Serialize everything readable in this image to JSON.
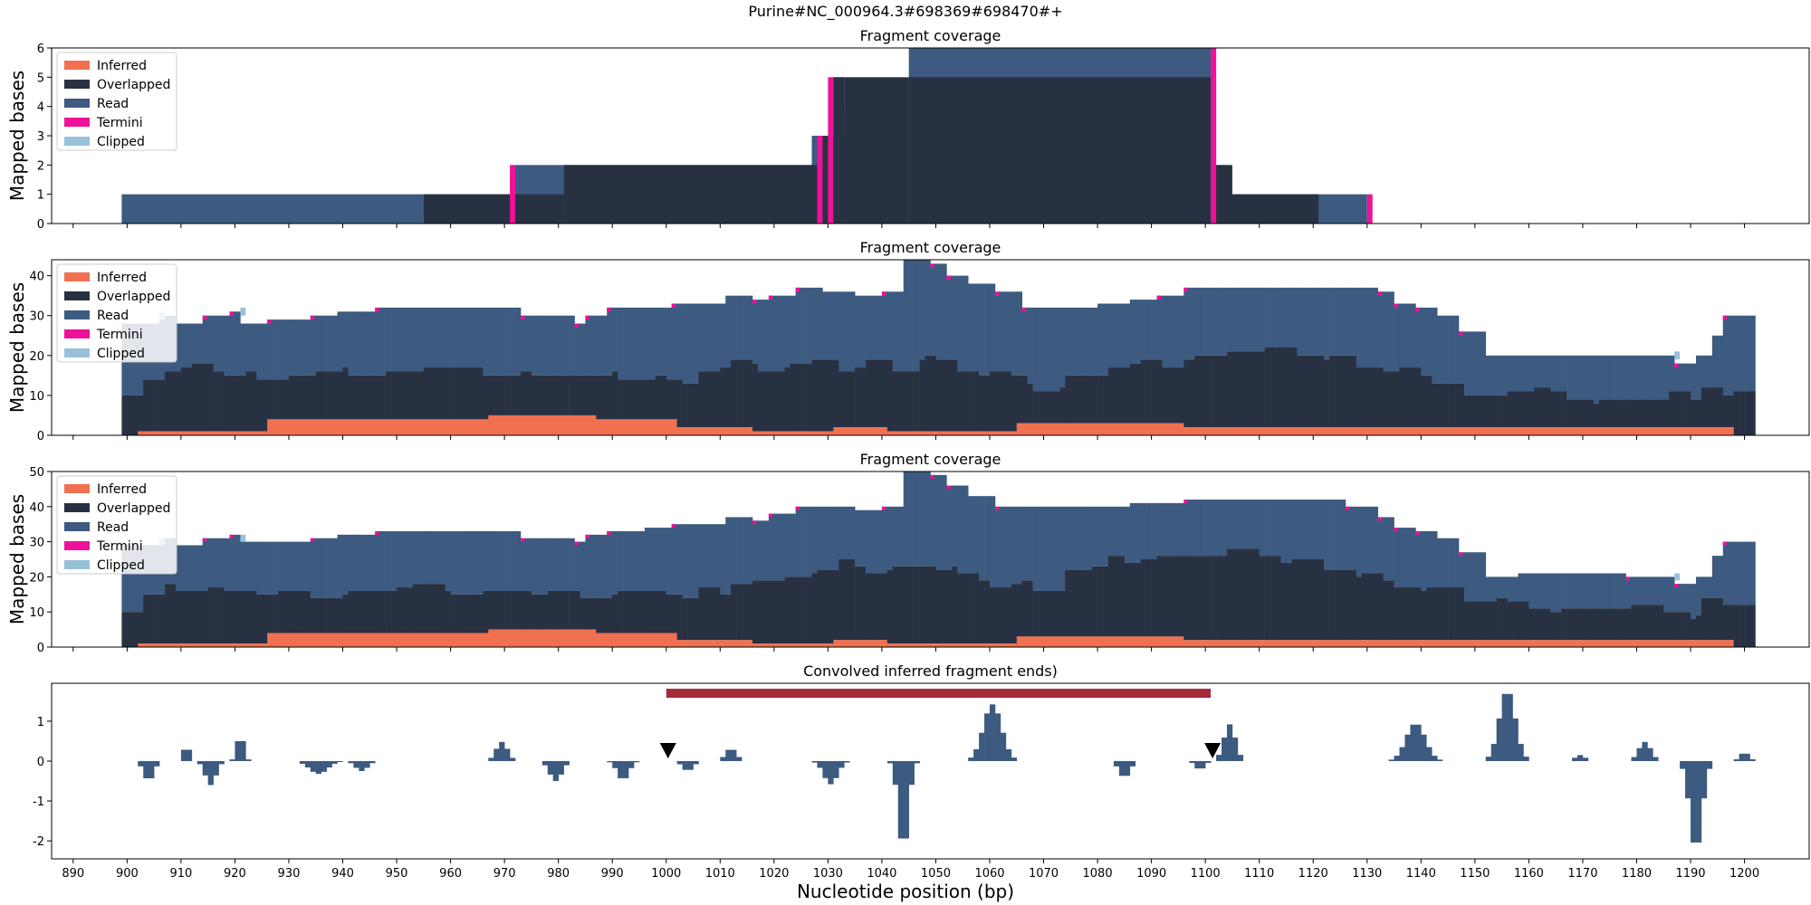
{
  "figure": {
    "suptitle": "Purine#NC_000964.3#698369#698470#+",
    "xlabel": "Nucleotide position (bp)"
  },
  "colors": {
    "Inferred": "#f07050",
    "Overlapped": "#283142",
    "Read": "#3d5a80",
    "Termini": "#ee1199",
    "Clipped": "#98c1d9",
    "band": "#a52a3a",
    "neg_bars": "#3d5a80"
  },
  "legend_entries": [
    "Inferred",
    "Overlapped",
    "Read",
    "Termini",
    "Clipped"
  ],
  "chart_data": [
    {
      "type": "area",
      "title": "Fragment coverage",
      "ylabel": "Mapped bases",
      "xlim": [
        886,
        1212
      ],
      "ylim": [
        0,
        6
      ],
      "yticks": [
        0,
        1,
        2,
        3,
        4,
        5,
        6
      ],
      "legend": "top-left",
      "series": [
        {
          "name": "Read",
          "steps": [
            [
              899,
              955,
              1
            ],
            [
              955,
              972,
              1
            ],
            [
              972,
              981,
              2
            ],
            [
              981,
              1027,
              2
            ],
            [
              1027,
              1031,
              3
            ],
            [
              1031,
              1033,
              5
            ],
            [
              1033,
              1045,
              4
            ],
            [
              1045,
              1045,
              5
            ],
            [
              1045,
              1102,
              6
            ],
            [
              1102,
              1104,
              2
            ],
            [
              1104,
              1130,
              1
            ]
          ]
        },
        {
          "name": "Overlapped",
          "steps": [
            [
              955,
              972,
              1
            ],
            [
              972,
              981,
              1
            ],
            [
              981,
              1029,
              2
            ],
            [
              1029,
              1033,
              3
            ],
            [
              1031,
              1033,
              5
            ],
            [
              1033,
              1045,
              5
            ],
            [
              1045,
              1102,
              5
            ],
            [
              1102,
              1105,
              2
            ],
            [
              1105,
              1121,
              1
            ]
          ]
        },
        {
          "name": "Termini",
          "marks": [
            [
              971,
              2
            ],
            [
              1028,
              3
            ],
            [
              1030,
              5
            ],
            [
              1101,
              6
            ],
            [
              1130,
              1
            ]
          ]
        }
      ]
    },
    {
      "type": "area",
      "title": "Fragment coverage",
      "ylabel": "Mapped bases",
      "xlim": [
        886,
        1212
      ],
      "ylim": [
        0,
        44
      ],
      "yticks": [
        0,
        10,
        20,
        30,
        40
      ],
      "legend": "top-left",
      "total_profile": [
        [
          899,
          28
        ],
        [
          906,
          30
        ],
        [
          909,
          28
        ],
        [
          914,
          30
        ],
        [
          919,
          31
        ],
        [
          921,
          28
        ],
        [
          926,
          29
        ],
        [
          934,
          30
        ],
        [
          939,
          31
        ],
        [
          946,
          32
        ],
        [
          956,
          32
        ],
        [
          966,
          32
        ],
        [
          973,
          30
        ],
        [
          979,
          30
        ],
        [
          983,
          28
        ],
        [
          985,
          30
        ],
        [
          989,
          32
        ],
        [
          996,
          32
        ],
        [
          1001,
          33
        ],
        [
          1006,
          33
        ],
        [
          1011,
          35
        ],
        [
          1016,
          34
        ],
        [
          1019,
          35
        ],
        [
          1024,
          37
        ],
        [
          1029,
          36
        ],
        [
          1035,
          35
        ],
        [
          1040,
          36
        ],
        [
          1044,
          44
        ],
        [
          1049,
          43
        ],
        [
          1052,
          40
        ],
        [
          1056,
          38
        ],
        [
          1061,
          36
        ],
        [
          1066,
          32
        ],
        [
          1071,
          32
        ],
        [
          1080,
          33
        ],
        [
          1086,
          34
        ],
        [
          1091,
          35
        ],
        [
          1096,
          37
        ],
        [
          1106,
          37
        ],
        [
          1116,
          37
        ],
        [
          1126,
          37
        ],
        [
          1132,
          36
        ],
        [
          1135,
          33
        ],
        [
          1139,
          32
        ],
        [
          1143,
          30
        ],
        [
          1147,
          26
        ],
        [
          1152,
          20
        ],
        [
          1158,
          20
        ],
        [
          1163,
          20
        ],
        [
          1168,
          20
        ],
        [
          1178,
          20
        ],
        [
          1187,
          18
        ],
        [
          1191,
          20
        ],
        [
          1194,
          25
        ],
        [
          1196,
          30
        ],
        [
          1202,
          30
        ]
      ],
      "overlapped_profile": [
        [
          899,
          10
        ],
        [
          903,
          14
        ],
        [
          907,
          16
        ],
        [
          912,
          17
        ],
        [
          918,
          16
        ],
        [
          924,
          14
        ],
        [
          930,
          15
        ],
        [
          940,
          16
        ],
        [
          950,
          16
        ],
        [
          955,
          17
        ],
        [
          960,
          16
        ],
        [
          970,
          16
        ],
        [
          975,
          15
        ],
        [
          985,
          14
        ],
        [
          990,
          15
        ],
        [
          1000,
          14
        ],
        [
          1003,
          13
        ],
        [
          1006,
          16
        ],
        [
          1012,
          18
        ],
        [
          1016,
          17
        ],
        [
          1022,
          18
        ],
        [
          1027,
          19
        ],
        [
          1032,
          16
        ],
        [
          1037,
          18
        ],
        [
          1042,
          17
        ],
        [
          1047,
          20
        ],
        [
          1050,
          19
        ],
        [
          1054,
          16
        ],
        [
          1058,
          15
        ],
        [
          1064,
          14
        ],
        [
          1068,
          12
        ],
        [
          1074,
          15
        ],
        [
          1082,
          17
        ],
        [
          1088,
          18
        ],
        [
          1096,
          20
        ],
        [
          1104,
          21
        ],
        [
          1114,
          21
        ],
        [
          1122,
          20
        ],
        [
          1128,
          17
        ],
        [
          1133,
          16
        ],
        [
          1140,
          14
        ],
        [
          1148,
          10
        ],
        [
          1156,
          11
        ],
        [
          1164,
          10
        ],
        [
          1172,
          9
        ],
        [
          1180,
          9
        ],
        [
          1186,
          10
        ],
        [
          1190,
          8
        ],
        [
          1192,
          13
        ],
        [
          1196,
          11
        ],
        [
          1202,
          10
        ]
      ],
      "inferred_steps": [
        [
          902,
          926,
          1
        ],
        [
          926,
          967,
          4
        ],
        [
          967,
          987,
          5
        ],
        [
          987,
          1002,
          4
        ],
        [
          1002,
          1006,
          2
        ],
        [
          1006,
          1016,
          2
        ],
        [
          1016,
          1023,
          1
        ],
        [
          1023,
          1031,
          1
        ],
        [
          1031,
          1041,
          2
        ],
        [
          1041,
          1065,
          1
        ],
        [
          1065,
          1096,
          3
        ],
        [
          1096,
          1198,
          2
        ]
      ]
    },
    {
      "type": "area",
      "title": "Fragment coverage",
      "ylabel": "Mapped bases",
      "xlim": [
        886,
        1212
      ],
      "ylim": [
        0,
        50
      ],
      "yticks": [
        0,
        10,
        20,
        30,
        40,
        50
      ],
      "legend": "top-left",
      "total_profile": [
        [
          899,
          29
        ],
        [
          906,
          31
        ],
        [
          909,
          29
        ],
        [
          914,
          31
        ],
        [
          919,
          32
        ],
        [
          921,
          30
        ],
        [
          926,
          30
        ],
        [
          934,
          31
        ],
        [
          939,
          32
        ],
        [
          946,
          33
        ],
        [
          956,
          33
        ],
        [
          966,
          33
        ],
        [
          973,
          31
        ],
        [
          979,
          31
        ],
        [
          983,
          30
        ],
        [
          985,
          32
        ],
        [
          989,
          33
        ],
        [
          996,
          34
        ],
        [
          1001,
          35
        ],
        [
          1006,
          35
        ],
        [
          1011,
          37
        ],
        [
          1016,
          36
        ],
        [
          1019,
          38
        ],
        [
          1024,
          40
        ],
        [
          1029,
          40
        ],
        [
          1035,
          39
        ],
        [
          1040,
          40
        ],
        [
          1044,
          50
        ],
        [
          1049,
          49
        ],
        [
          1052,
          46
        ],
        [
          1056,
          43
        ],
        [
          1061,
          40
        ],
        [
          1066,
          40
        ],
        [
          1071,
          40
        ],
        [
          1080,
          40
        ],
        [
          1086,
          41
        ],
        [
          1091,
          41
        ],
        [
          1096,
          42
        ],
        [
          1106,
          42
        ],
        [
          1116,
          42
        ],
        [
          1126,
          40
        ],
        [
          1132,
          37
        ],
        [
          1135,
          34
        ],
        [
          1139,
          33
        ],
        [
          1143,
          31
        ],
        [
          1147,
          27
        ],
        [
          1152,
          20
        ],
        [
          1158,
          21
        ],
        [
          1163,
          21
        ],
        [
          1168,
          21
        ],
        [
          1178,
          20
        ],
        [
          1187,
          18
        ],
        [
          1191,
          20
        ],
        [
          1194,
          26
        ],
        [
          1196,
          30
        ],
        [
          1202,
          30
        ]
      ],
      "overlapped_profile": [
        [
          899,
          10
        ],
        [
          903,
          14
        ],
        [
          907,
          17
        ],
        [
          912,
          17
        ],
        [
          918,
          16
        ],
        [
          924,
          15
        ],
        [
          930,
          15
        ],
        [
          940,
          16
        ],
        [
          950,
          17
        ],
        [
          955,
          17
        ],
        [
          960,
          16
        ],
        [
          970,
          16
        ],
        [
          975,
          15
        ],
        [
          985,
          15
        ],
        [
          990,
          16
        ],
        [
          1000,
          15
        ],
        [
          1003,
          13
        ],
        [
          1006,
          16
        ],
        [
          1012,
          19
        ],
        [
          1016,
          19
        ],
        [
          1022,
          20
        ],
        [
          1027,
          21
        ],
        [
          1032,
          24
        ],
        [
          1037,
          22
        ],
        [
          1042,
          23
        ],
        [
          1047,
          23
        ],
        [
          1050,
          22
        ],
        [
          1054,
          20
        ],
        [
          1058,
          18
        ],
        [
          1064,
          19
        ],
        [
          1068,
          16
        ],
        [
          1074,
          22
        ],
        [
          1082,
          25
        ],
        [
          1088,
          26
        ],
        [
          1096,
          26
        ],
        [
          1104,
          27
        ],
        [
          1114,
          25
        ],
        [
          1122,
          22
        ],
        [
          1128,
          20
        ],
        [
          1133,
          18
        ],
        [
          1140,
          17
        ],
        [
          1148,
          13
        ],
        [
          1156,
          12
        ],
        [
          1164,
          11
        ],
        [
          1172,
          11
        ],
        [
          1180,
          11
        ],
        [
          1186,
          11
        ],
        [
          1190,
          9
        ],
        [
          1192,
          14
        ],
        [
          1196,
          12
        ],
        [
          1202,
          11
        ]
      ],
      "inferred_steps": [
        [
          902,
          926,
          1
        ],
        [
          926,
          967,
          4
        ],
        [
          967,
          987,
          5
        ],
        [
          987,
          1002,
          4
        ],
        [
          1002,
          1006,
          2
        ],
        [
          1006,
          1016,
          2
        ],
        [
          1016,
          1023,
          1
        ],
        [
          1023,
          1031,
          1
        ],
        [
          1031,
          1041,
          2
        ],
        [
          1041,
          1065,
          1
        ],
        [
          1065,
          1096,
          3
        ],
        [
          1096,
          1198,
          2
        ]
      ]
    },
    {
      "type": "bar",
      "title": "Convolved inferred fragment ends)",
      "ylabel": "",
      "xlabel": "Nucleotide position (bp)",
      "xlim": [
        886,
        1212
      ],
      "ylim": [
        -2.45,
        1.95
      ],
      "yticks": [
        -2,
        -1,
        0,
        1
      ],
      "xticks": [
        890,
        900,
        910,
        920,
        930,
        940,
        950,
        960,
        970,
        980,
        990,
        1000,
        1010,
        1020,
        1030,
        1040,
        1050,
        1060,
        1070,
        1080,
        1090,
        1100,
        1110,
        1120,
        1130,
        1140,
        1150,
        1160,
        1170,
        1180,
        1190,
        1200
      ],
      "band": [
        1000,
        1101,
        1.7
      ],
      "markers": [
        [
          1000,
          0.25
        ],
        [
          1101,
          0.25
        ]
      ],
      "peaks": [
        [
          903.5,
          -0.5,
          1.3
        ],
        [
          910.5,
          0.42,
          0.8
        ],
        [
          915,
          -0.6,
          1.4
        ],
        [
          920.5,
          0.68,
          0.9
        ],
        [
          935,
          -0.32,
          2.4
        ],
        [
          943,
          -0.25,
          1.6
        ],
        [
          969,
          0.48,
          1.5
        ],
        [
          979,
          -0.5,
          1.6
        ],
        [
          991.5,
          -0.48,
          1.5
        ],
        [
          1003.5,
          -0.25,
          1.4
        ],
        [
          1011.5,
          0.32,
          1.4
        ],
        [
          1030,
          -0.58,
          1.8
        ],
        [
          1043.5,
          -2.25,
          1.3
        ],
        [
          1060,
          1.42,
          2.4
        ],
        [
          1084.5,
          -0.42,
          1.4
        ],
        [
          1098.5,
          -0.22,
          1.2
        ],
        [
          1104,
          0.92,
          1.5
        ],
        [
          1138.5,
          0.95,
          2.5
        ],
        [
          1155.5,
          1.78,
          2.1
        ],
        [
          1169,
          0.15,
          1.3
        ],
        [
          1181,
          0.48,
          1.6
        ],
        [
          1190.5,
          -2.25,
          1.6
        ],
        [
          1199.5,
          0.22,
          1.2
        ]
      ]
    }
  ]
}
